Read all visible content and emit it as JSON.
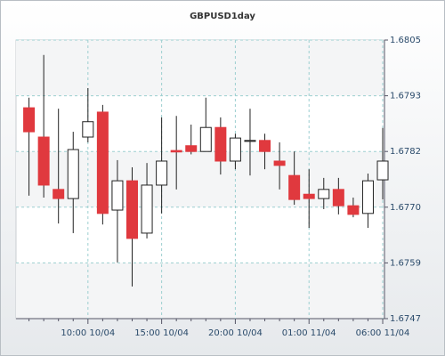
{
  "chart_data": {
    "type": "candlestick",
    "title": "GBPUSD1day",
    "categories": [
      null,
      null,
      null,
      null,
      "10:00 10/04",
      null,
      null,
      null,
      null,
      "15:00 10/04",
      null,
      null,
      null,
      null,
      "20:00 10/04",
      null,
      null,
      null,
      null,
      "01:00 11/04",
      null,
      null,
      null,
      null,
      "06:00 11/04"
    ],
    "open": [
      1.67909,
      1.67848,
      1.67739,
      1.6772,
      1.67848,
      1.679,
      1.67696,
      1.67757,
      1.67648,
      1.67748,
      1.6782,
      1.6783,
      1.67818,
      1.67868,
      1.67798,
      1.67839,
      1.67841,
      1.67798,
      1.67768,
      1.67729,
      1.6772,
      1.67739,
      1.67705,
      1.67689,
      1.67759
    ],
    "high": [
      1.6793,
      1.68019,
      1.67907,
      1.67859,
      1.6795,
      1.67915,
      1.678,
      1.67785,
      1.67794,
      1.67889,
      1.67892,
      1.67874,
      1.6793,
      1.67889,
      1.67855,
      1.67907,
      1.67855,
      1.67837,
      1.67818,
      1.67781,
      1.67763,
      1.67763,
      1.67722,
      1.67772,
      1.67867
    ],
    "low": [
      1.67726,
      1.67722,
      1.67668,
      1.67648,
      1.67837,
      1.67666,
      1.67587,
      1.67537,
      1.67637,
      1.67689,
      1.67739,
      1.67812,
      1.67818,
      1.6777,
      1.67781,
      1.67768,
      1.67781,
      1.67739,
      1.67707,
      1.67659,
      1.67698,
      1.67687,
      1.67681,
      1.67659,
      1.67718
    ],
    "close": [
      1.67859,
      1.67748,
      1.6772,
      1.67822,
      1.6788,
      1.67689,
      1.67757,
      1.67637,
      1.67748,
      1.67798,
      1.67817,
      1.67818,
      1.67868,
      1.67798,
      1.67846,
      1.67841,
      1.67818,
      1.67789,
      1.67718,
      1.6772,
      1.67739,
      1.67705,
      1.67687,
      1.67757,
      1.67798
    ],
    "up_color": "#ffffff",
    "down_color": "#e0393e",
    "ylim": [
      1.6747,
      1.6805
    ],
    "yticks": [
      1.6805,
      {
        "value": 1.67934,
        "label": "1.6793"
      },
      {
        "value": 1.67818,
        "label": "1.6782"
      },
      {
        "value": 1.67702,
        "label": "1.6770"
      },
      {
        "value": 1.67586,
        "label": "1.6759"
      },
      1.6747
    ],
    "grid": true
  }
}
